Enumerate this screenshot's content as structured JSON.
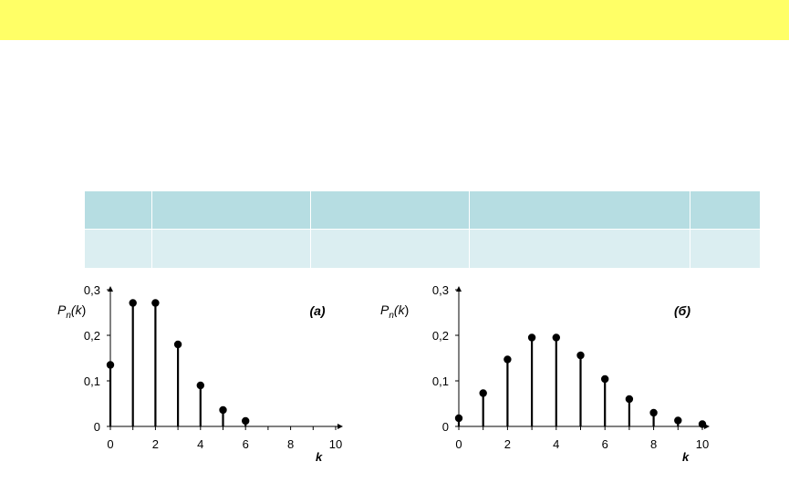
{
  "colors": {
    "banner": "#ffff66",
    "table_head": "#b6dde2",
    "table_body": "#dbeef1"
  },
  "chart_data": [
    {
      "type": "stem",
      "panel_label": "(а)",
      "ylabel": "Pn(k)",
      "xlabel": "k",
      "xlim": [
        0,
        10
      ],
      "ylim": [
        0,
        0.3
      ],
      "x_ticks": [
        "0",
        "2",
        "4",
        "6",
        "8",
        "10"
      ],
      "y_ticks": [
        "0",
        "0,1",
        "0,2",
        "0,3"
      ],
      "x": [
        0,
        1,
        2,
        3,
        4,
        5,
        6
      ],
      "values": [
        0.135,
        0.271,
        0.271,
        0.18,
        0.09,
        0.036,
        0.012
      ]
    },
    {
      "type": "stem",
      "panel_label": "(б)",
      "ylabel": "Pn(k)",
      "xlabel": "k",
      "xlim": [
        0,
        10
      ],
      "ylim": [
        0,
        0.3
      ],
      "x_ticks": [
        "0",
        "2",
        "4",
        "6",
        "8",
        "10"
      ],
      "y_ticks": [
        "0",
        "0,1",
        "0,2",
        "0,3"
      ],
      "x": [
        0,
        1,
        2,
        3,
        4,
        5,
        6,
        7,
        8,
        9,
        10
      ],
      "values": [
        0.018,
        0.073,
        0.147,
        0.195,
        0.195,
        0.156,
        0.104,
        0.06,
        0.03,
        0.013,
        0.005
      ]
    }
  ]
}
